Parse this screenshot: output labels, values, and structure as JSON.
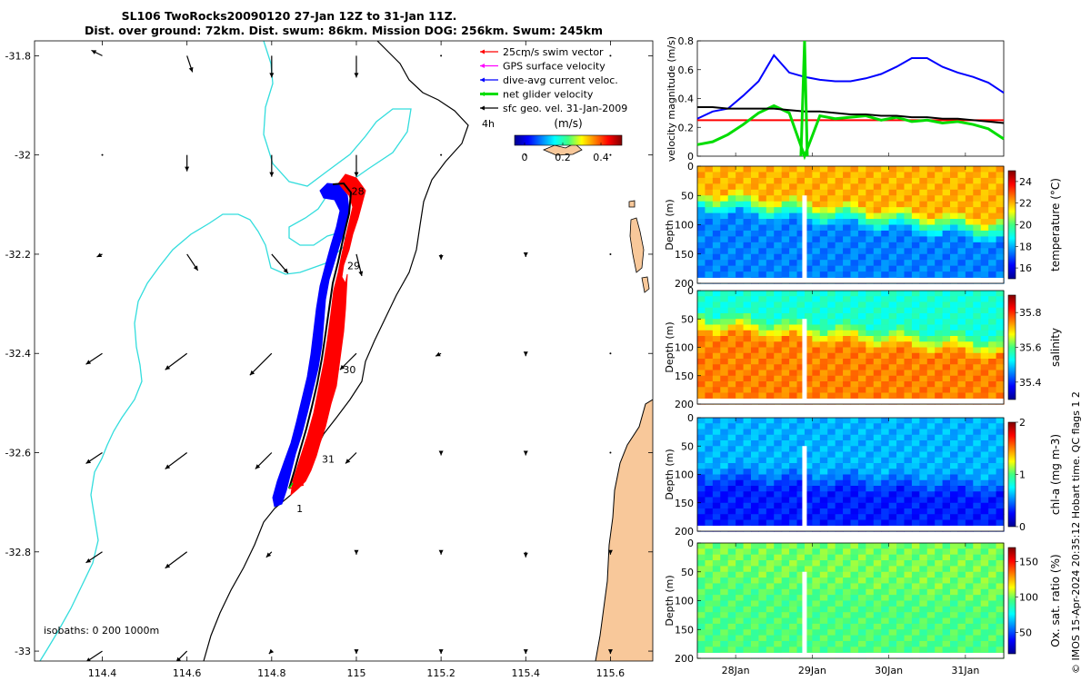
{
  "header": {
    "title_line1": "SL106 TwoRocks20090120 27-Jan 12Z to 31-Jan 11Z.",
    "title_line2": "Dist. over ground: 72km. Dist. swum: 86km. Mission DOG: 256km. Swum: 245km"
  },
  "map": {
    "legend": [
      {
        "label": "25cm/s swim vector",
        "color": "#ff0000"
      },
      {
        "label": "GPS surface velocity",
        "color": "#ff00ff"
      },
      {
        "label": "dive-avg current veloc.",
        "color": "#0000ff"
      },
      {
        "label": "net glider velocity",
        "color": "#00dd00"
      },
      {
        "label": "sfc geo. vel. 31-Jan-2009",
        "color": "#000000"
      }
    ],
    "scale_hint": "4h",
    "colorbar": {
      "unit": "(m/s)",
      "ticks": [
        "0",
        "0.2",
        "0.4"
      ]
    },
    "isobaths_label": "isobaths: 0   200  1000m",
    "day_labels": [
      {
        "text": "28",
        "lon": 114.98,
        "lat": -32.08
      },
      {
        "text": "29",
        "lon": 114.97,
        "lat": -32.23
      },
      {
        "text": "30",
        "lon": 114.96,
        "lat": -32.44
      },
      {
        "text": "31",
        "lon": 114.91,
        "lat": -32.62
      },
      {
        "text": "1",
        "lon": 114.85,
        "lat": -32.72
      }
    ],
    "xticks": [
      "114.4",
      "114.6",
      "114.8",
      "115",
      "115.2",
      "115.4",
      "115.6"
    ],
    "yticks": [
      "-31.8",
      "-32",
      "-32.2",
      "-32.4",
      "-32.6",
      "-32.8",
      "-33"
    ],
    "colors": {
      "isobath_0": "#000000",
      "isobath_200": "#000000",
      "isobath_1000": "#33dddd",
      "land": "#f8c89a",
      "track_blue": "#0000ff",
      "track_red": "#ff0000"
    }
  },
  "chart_data": [
    {
      "type": "line",
      "panel": "velocity",
      "ylabel": "velocity magnitude (m/s)",
      "ylim": [
        0,
        0.8
      ],
      "yticks": [
        "0",
        "0.2",
        "0.4",
        "0.6",
        "0.8"
      ],
      "x": [
        27.5,
        27.7,
        27.9,
        28.1,
        28.3,
        28.5,
        28.7,
        28.9,
        29.1,
        29.3,
        29.5,
        29.7,
        29.9,
        30.1,
        30.3,
        30.5,
        30.7,
        30.9,
        31.1,
        31.3,
        31.5
      ],
      "series": [
        {
          "color": "#0000ff",
          "values": [
            0.26,
            0.31,
            0.33,
            0.42,
            0.52,
            0.7,
            0.58,
            0.55,
            0.53,
            0.52,
            0.52,
            0.54,
            0.57,
            0.62,
            0.68,
            0.68,
            0.62,
            0.58,
            0.55,
            0.51,
            0.44
          ]
        },
        {
          "color": "#ff0000",
          "values": [
            0.25,
            0.25,
            0.25,
            0.25,
            0.25,
            0.25,
            0.25,
            0.25,
            0.25,
            0.25,
            0.25,
            0.25,
            0.25,
            0.25,
            0.25,
            0.25,
            0.25,
            0.25,
            0.25,
            0.25,
            0.25
          ]
        },
        {
          "color": "#00dd00",
          "values": [
            0.08,
            0.1,
            0.15,
            0.22,
            0.3,
            0.35,
            0.3,
            0.0,
            0.28,
            0.26,
            0.27,
            0.28,
            0.25,
            0.27,
            0.24,
            0.25,
            0.23,
            0.24,
            0.22,
            0.19,
            0.12
          ]
        },
        {
          "color": "#000000",
          "values": [
            0.34,
            0.34,
            0.33,
            0.33,
            0.33,
            0.33,
            0.32,
            0.31,
            0.31,
            0.3,
            0.29,
            0.29,
            0.28,
            0.28,
            0.27,
            0.27,
            0.26,
            0.26,
            0.25,
            0.24,
            0.23
          ]
        }
      ]
    },
    {
      "type": "heatmap",
      "panel": "temperature",
      "ylabel": "Depth (m)",
      "cblabel": "temperature (°C)",
      "yticks": [
        "0",
        "50",
        "100",
        "150",
        "200"
      ],
      "cbticks": [
        "16",
        "18",
        "20",
        "22",
        "24"
      ],
      "clim": [
        15,
        25
      ],
      "profile_depths": [
        0,
        40,
        80,
        120,
        160,
        200
      ],
      "surface_value": 22.0,
      "layer_value": 17.5,
      "interface_depth_start": 60,
      "interface_depth_end": 110
    },
    {
      "type": "heatmap",
      "panel": "salinity",
      "ylabel": "Depth (m)",
      "cblabel": "salinity",
      "yticks": [
        "0",
        "50",
        "100",
        "150",
        "200"
      ],
      "cbticks": [
        "35.4",
        "35.6",
        "35.8"
      ],
      "clim": [
        35.3,
        35.9
      ],
      "surface_value": 35.55,
      "layer_value": 35.75,
      "interface_depth_start": 55,
      "interface_depth_end": 100
    },
    {
      "type": "heatmap",
      "panel": "chl-a",
      "ylabel": "Depth (m)",
      "cblabel": "chl-a (mg m-3)",
      "yticks": [
        "0",
        "50",
        "100",
        "150",
        "200"
      ],
      "cbticks": [
        "0",
        "1",
        "2"
      ],
      "clim": [
        0,
        2
      ],
      "surface_value": 0.6,
      "layer_value": 0.3,
      "interface_depth_start": 100,
      "interface_depth_end": 120
    },
    {
      "type": "heatmap",
      "panel": "oxygen",
      "ylabel": "Depth (m)",
      "cblabel": "Ox. sat. ratio (%)",
      "yticks": [
        "0",
        "50",
        "100",
        "150",
        "200"
      ],
      "cbticks": [
        "50",
        "100",
        "150"
      ],
      "clim": [
        20,
        170
      ],
      "surface_value": 100,
      "layer_value": 95,
      "interface_depth_start": 60,
      "interface_depth_end": 100
    }
  ],
  "time_axis": {
    "ticks": [
      "28Jan",
      "29Jan",
      "30Jan",
      "31Jan"
    ],
    "start": 27.5,
    "end": 31.5
  },
  "footer": {
    "credit": "© IMOS 15-Apr-2024 20:35:12 Hobart time. QC flags 1  2"
  }
}
